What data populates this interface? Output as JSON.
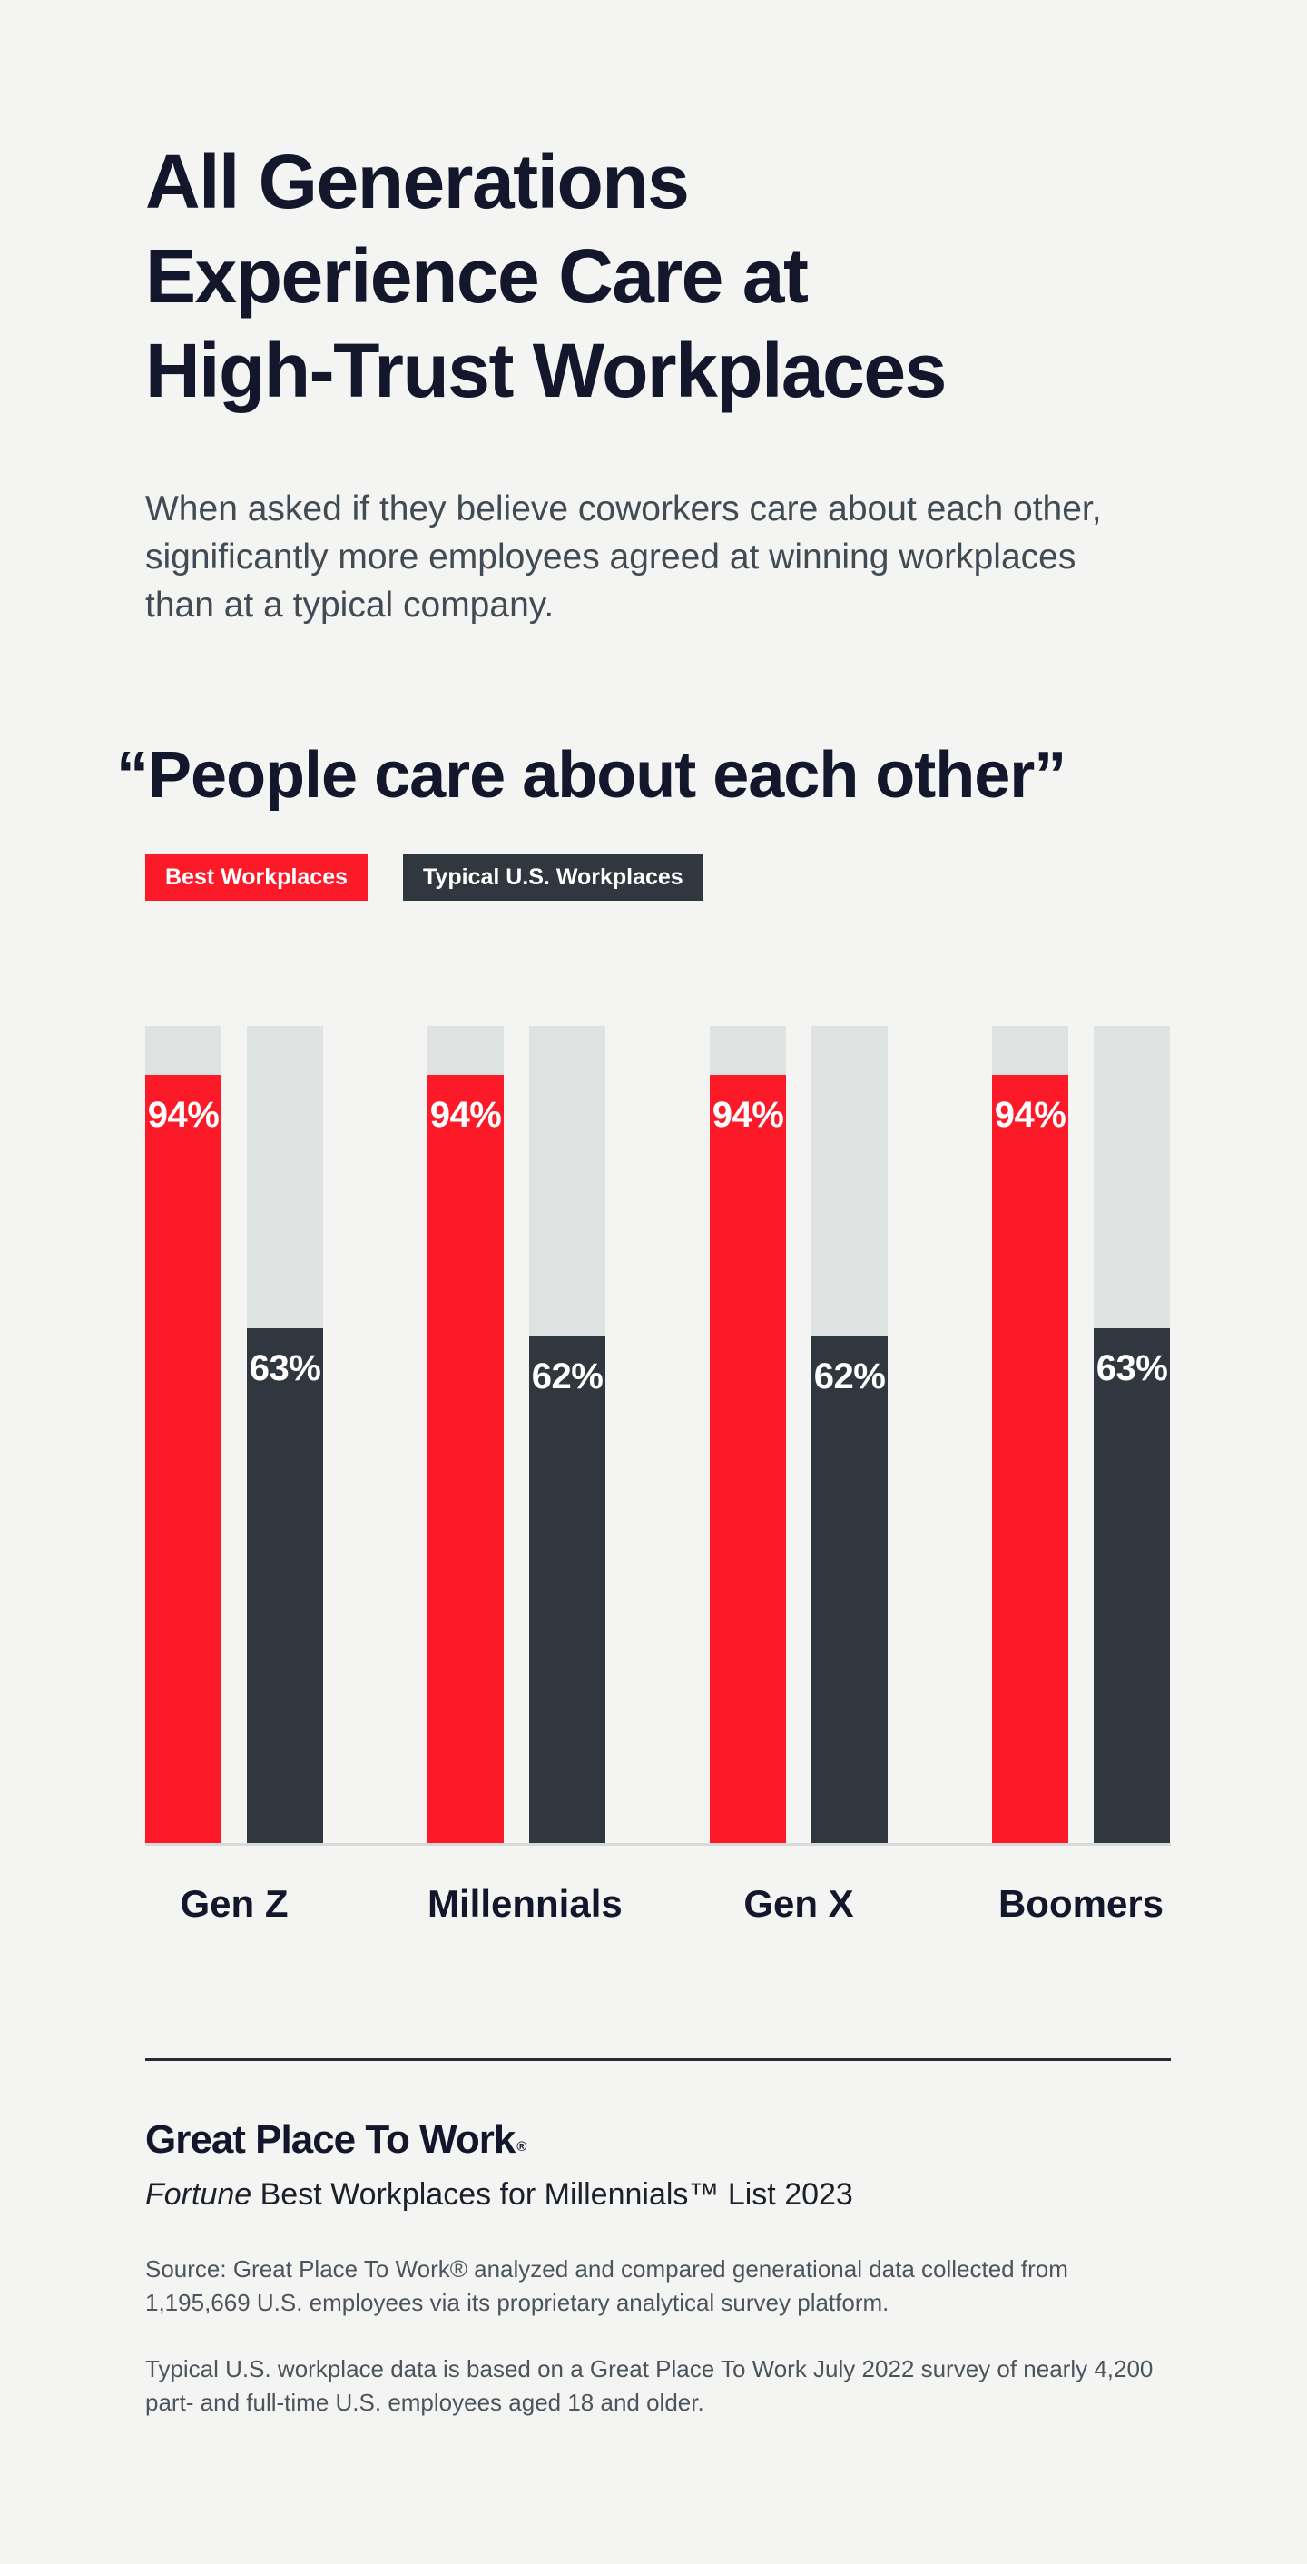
{
  "page": {
    "background_color": "#F4F5F3",
    "title_lines": [
      "All Generations",
      "Experience Care at",
      "High-Trust Workplaces"
    ],
    "subtitle": "When asked if they believe coworkers care about each other, significantly more employees agreed at winning workplaces than at a typical company."
  },
  "chart_data": {
    "type": "bar",
    "title": "“People care about each other”",
    "categories": [
      "Gen Z",
      "Millennials",
      "Gen X",
      "Boomers"
    ],
    "series": [
      {
        "name": "Best Workplaces",
        "color": "#FC1A28",
        "values": [
          94,
          94,
          94,
          94
        ]
      },
      {
        "name": "Typical U.S. Workplaces",
        "color": "#30373F",
        "values": [
          63,
          62,
          62,
          63
        ]
      }
    ],
    "value_suffix": "%",
    "ylim": [
      0,
      100
    ],
    "grid": false,
    "legend_position": "top-left",
    "track_color": "#DEE2E1",
    "baseline_color": "#D6DBD9",
    "value_label_color": "#FFFFFF"
  },
  "footer": {
    "logo": "Great Place To Work",
    "logo_reg": "®",
    "list_title_italic": "Fortune",
    "list_title_rest": " Best Workplaces for Millennials™ List 2023",
    "source_1": "Source: Great Place To Work® analyzed and compared generational data collected from 1,195,669 U.S. employees via its proprietary analytical survey platform.",
    "source_2": "Typical U.S. workplace data is based on a Great Place To Work July 2022 survey of nearly 4,200 part- and full-time U.S. employees aged 18 and older."
  }
}
